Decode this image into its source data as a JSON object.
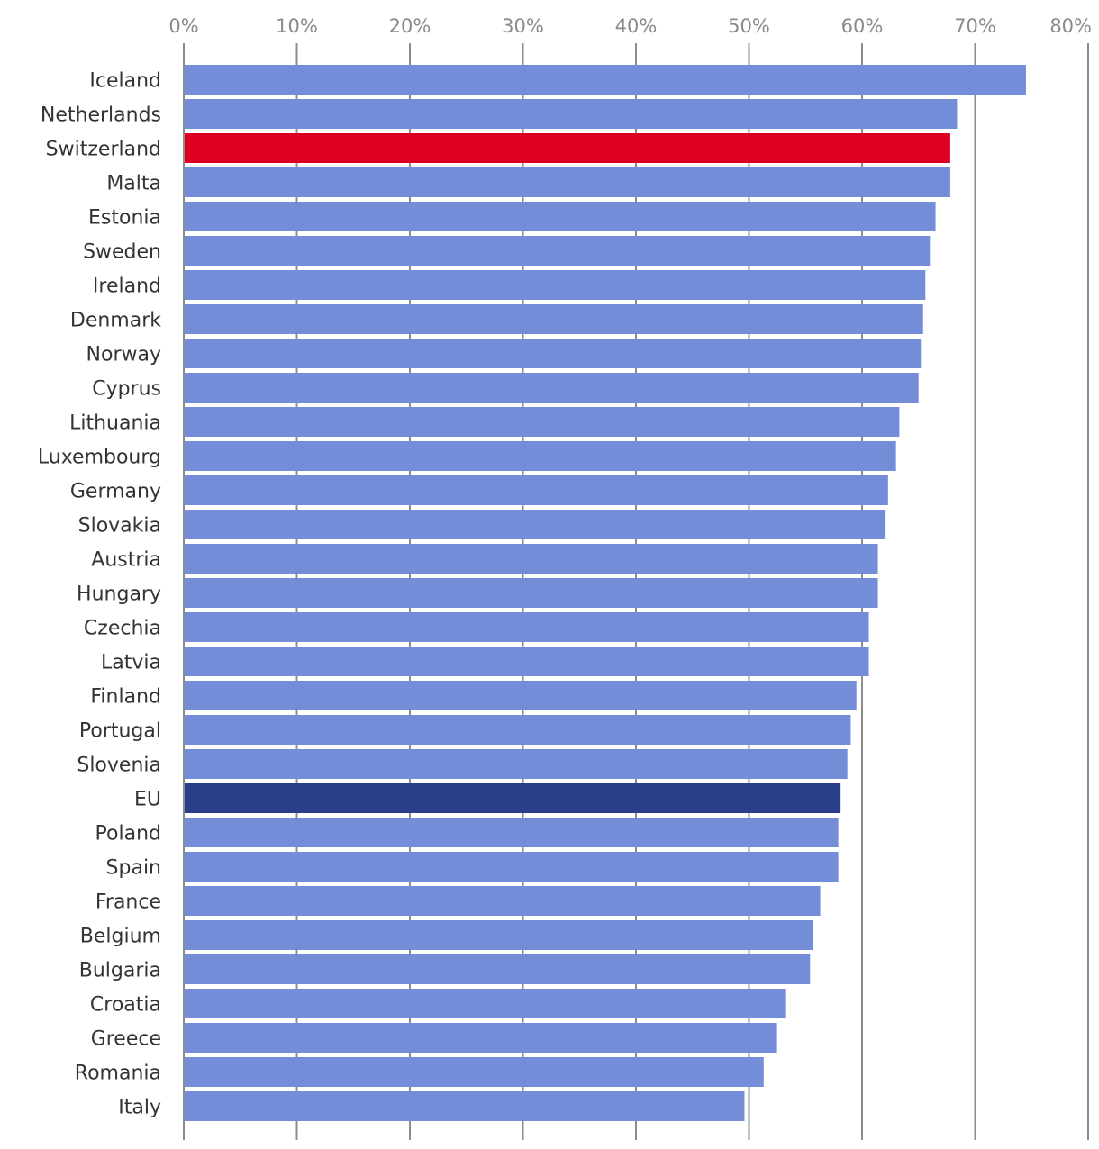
{
  "chart_data": {
    "type": "bar",
    "orientation": "horizontal",
    "title": "",
    "xlabel": "",
    "ylabel": "",
    "xlim": [
      0,
      80
    ],
    "x_ticks": [
      {
        "value": 0,
        "label": "0%"
      },
      {
        "value": 10,
        "label": "10%"
      },
      {
        "value": 20,
        "label": "20%"
      },
      {
        "value": 30,
        "label": "30%"
      },
      {
        "value": 40,
        "label": "40%"
      },
      {
        "value": 50,
        "label": "50%"
      },
      {
        "value": 60,
        "label": "60%"
      },
      {
        "value": 70,
        "label": "70%"
      },
      {
        "value": 80,
        "label": "80%"
      }
    ],
    "grid": "vertical",
    "tick_position": "top",
    "categories": [
      "Iceland",
      "Netherlands",
      "Switzerland",
      "Malta",
      "Estonia",
      "Sweden",
      "Ireland",
      "Denmark",
      "Norway",
      "Cyprus",
      "Lithuania",
      "Luxembourg",
      "Germany",
      "Slovakia",
      "Austria",
      "Hungary",
      "Czechia",
      "Latvia",
      "Finland",
      "Portugal",
      "Slovenia",
      "EU",
      "Poland",
      "Spain",
      "France",
      "Belgium",
      "Bulgaria",
      "Croatia",
      "Greece",
      "Romania",
      "Italy"
    ],
    "values": [
      74.5,
      68.4,
      67.8,
      67.8,
      66.5,
      66.0,
      65.6,
      65.4,
      65.2,
      65.0,
      63.3,
      63.0,
      62.3,
      62.0,
      61.4,
      61.4,
      60.6,
      60.6,
      59.5,
      59.0,
      58.7,
      58.1,
      57.9,
      57.9,
      56.3,
      55.7,
      55.4,
      53.2,
      52.4,
      51.3,
      49.6
    ],
    "colors": {
      "default": "#738dd9",
      "highlight": "#dd0021",
      "aggregate": "#293f8a"
    },
    "highlight_categories": {
      "Switzerland": "highlight",
      "EU": "aggregate"
    }
  }
}
